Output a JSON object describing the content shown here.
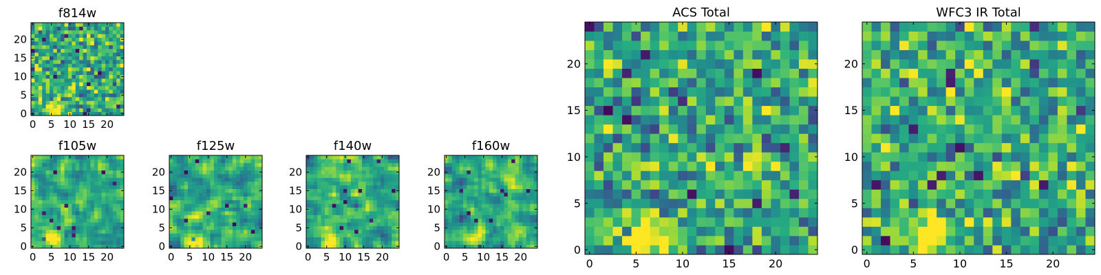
{
  "chart_data": [
    {
      "id": "f814w",
      "type": "heatmap",
      "title": "f814w",
      "colormap": "viridis",
      "grid_size": 25,
      "xlim": [
        -0.5,
        24.5
      ],
      "ylim": [
        -0.5,
        24.5
      ],
      "xticks": [
        0,
        5,
        10,
        15,
        20
      ],
      "yticks": [
        0,
        5,
        10,
        15,
        20
      ],
      "xtick_labels": [
        "0",
        "5",
        "10",
        "15",
        "20"
      ],
      "ytick_labels": [
        "0",
        "5",
        "10",
        "15",
        "20"
      ],
      "bright_region_center": [
        6,
        1
      ],
      "seed": 11,
      "smoothing": 0
    },
    {
      "id": "f105w",
      "type": "heatmap",
      "title": "f105w",
      "colormap": "viridis",
      "grid_size": 25,
      "xlim": [
        -0.5,
        24.5
      ],
      "ylim": [
        -0.5,
        24.5
      ],
      "xticks": [
        0,
        5,
        10,
        15,
        20
      ],
      "yticks": [
        0,
        5,
        10,
        15,
        20
      ],
      "xtick_labels": [
        "0",
        "5",
        "10",
        "15",
        "20"
      ],
      "ytick_labels": [
        "0",
        "5",
        "10",
        "15",
        "20"
      ],
      "bright_region_center": [
        5,
        2
      ],
      "seed": 23,
      "smoothing": 1
    },
    {
      "id": "f125w",
      "type": "heatmap",
      "title": "f125w",
      "colormap": "viridis",
      "grid_size": 25,
      "xlim": [
        -0.5,
        24.5
      ],
      "ylim": [
        -0.5,
        24.5
      ],
      "xticks": [
        0,
        5,
        10,
        15,
        20
      ],
      "yticks": [
        0,
        5,
        10,
        15,
        20
      ],
      "xtick_labels": [
        "0",
        "5",
        "10",
        "15",
        "20"
      ],
      "ytick_labels": [
        "0",
        "5",
        "10",
        "15",
        "20"
      ],
      "bright_region_center": [
        6,
        1
      ],
      "seed": 37,
      "smoothing": 1
    },
    {
      "id": "f140w",
      "type": "heatmap",
      "title": "f140w",
      "colormap": "viridis",
      "grid_size": 25,
      "xlim": [
        -0.5,
        24.5
      ],
      "ylim": [
        -0.5,
        24.5
      ],
      "xticks": [
        0,
        5,
        10,
        15,
        20
      ],
      "yticks": [
        0,
        5,
        10,
        15,
        20
      ],
      "xtick_labels": [
        "0",
        "5",
        "10",
        "15",
        "20"
      ],
      "ytick_labels": [
        "0",
        "5",
        "10",
        "15",
        "20"
      ],
      "bright_region_center": [
        6,
        2
      ],
      "seed": 41,
      "smoothing": 1
    },
    {
      "id": "f160w",
      "type": "heatmap",
      "title": "f160w",
      "colormap": "viridis",
      "grid_size": 25,
      "xlim": [
        -0.5,
        24.5
      ],
      "ylim": [
        -0.5,
        24.5
      ],
      "xticks": [
        0,
        5,
        10,
        15,
        20
      ],
      "yticks": [
        0,
        5,
        10,
        15,
        20
      ],
      "xtick_labels": [
        "0",
        "5",
        "10",
        "15",
        "20"
      ],
      "ytick_labels": [
        "0",
        "5",
        "10",
        "15",
        "20"
      ],
      "bright_region_center": [
        7,
        2
      ],
      "seed": 53,
      "smoothing": 1
    },
    {
      "id": "acs_total",
      "type": "heatmap",
      "title": "ACS Total",
      "colormap": "viridis",
      "grid_size": 25,
      "xlim": [
        -0.5,
        24.5
      ],
      "ylim": [
        -0.5,
        24.5
      ],
      "xticks": [
        0,
        5,
        10,
        15,
        20
      ],
      "yticks": [
        0,
        5,
        10,
        15,
        20
      ],
      "xtick_labels": [
        "0",
        "5",
        "10",
        "15",
        "20"
      ],
      "ytick_labels": [
        "0",
        "5",
        "10",
        "15",
        "20"
      ],
      "bright_region_center": [
        6.5,
        1
      ],
      "seed": 67,
      "smoothing": 0
    },
    {
      "id": "wfc3_ir_total",
      "type": "heatmap",
      "title": "WFC3 IR Total",
      "colormap": "viridis",
      "grid_size": 25,
      "xlim": [
        -0.5,
        24.5
      ],
      "ylim": [
        -0.5,
        24.5
      ],
      "xticks": [
        0,
        5,
        10,
        15,
        20
      ],
      "yticks": [
        0,
        5,
        10,
        15,
        20
      ],
      "xtick_labels": [
        "0",
        "5",
        "10",
        "15",
        "20"
      ],
      "ytick_labels": [
        "0",
        "5",
        "10",
        "15",
        "20"
      ],
      "bright_region_center": [
        7,
        1.5
      ],
      "seed": 79,
      "smoothing": 0
    }
  ]
}
